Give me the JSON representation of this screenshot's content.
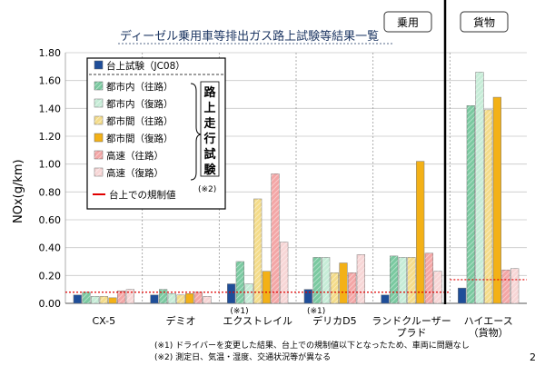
{
  "page_number": "2",
  "chart_data": {
    "type": "bar",
    "title": "ディーゼル乗用車等排出ガス路上試験等結果一覧",
    "ylabel": "NOx(g/km)",
    "ylim": [
      0,
      1.8
    ],
    "yticks": [
      "0.00",
      "0.20",
      "0.40",
      "0.60",
      "0.80",
      "1.00",
      "1.20",
      "1.40",
      "1.60",
      "1.80"
    ],
    "grid": true,
    "legend_position": "top-left",
    "categories": [
      "CX-5",
      "デミオ",
      "エクストレイル",
      "デリカD5",
      "ランドクルーザー\nプラド",
      "ハイエース\n（貨物）"
    ],
    "category_notes": [
      "",
      "",
      "(※1)",
      "(※1)",
      "",
      ""
    ],
    "series": [
      {
        "name": "台上試験（JC08）",
        "color": "#1f4e99",
        "pattern": "solid",
        "values": [
          0.06,
          0.06,
          0.14,
          0.1,
          0.06,
          0.11
        ]
      },
      {
        "name": "都市内（往路）",
        "color": "#7ac9a0",
        "pattern": "hatch",
        "values": [
          0.08,
          0.1,
          0.3,
          0.33,
          0.34,
          1.42
        ]
      },
      {
        "name": "都市内（復路）",
        "color": "#c6ecd7",
        "pattern": "hatch",
        "values": [
          0.05,
          0.07,
          0.14,
          0.33,
          0.33,
          1.66
        ]
      },
      {
        "name": "都市間（往路）",
        "color": "#f4dc8a",
        "pattern": "hatch",
        "values": [
          0.05,
          0.06,
          0.75,
          0.22,
          0.33,
          1.39
        ]
      },
      {
        "name": "都市間（復路）",
        "color": "#f3b117",
        "pattern": "solid",
        "values": [
          0.04,
          0.07,
          0.23,
          0.29,
          1.02,
          1.48
        ]
      },
      {
        "name": "高速（往路）",
        "color": "#f3a6a6",
        "pattern": "hatch",
        "values": [
          0.09,
          0.08,
          0.93,
          0.22,
          0.36,
          0.24
        ]
      },
      {
        "name": "高速（復路）",
        "color": "#f7d6d6",
        "pattern": "hatch",
        "values": [
          0.1,
          0.05,
          0.44,
          0.35,
          0.23,
          0.25
        ]
      }
    ],
    "limit_line": {
      "name": "台上での規制値",
      "color": "#e00000",
      "segments": [
        {
          "from": "CX-5",
          "to": "ランドクルーザー\nプラド",
          "value": 0.08
        },
        {
          "from": "ハイエース\n（貨物）",
          "to": "ハイエース\n（貨物）",
          "value": 0.17
        }
      ]
    },
    "legend_group_label": "路上走行試験",
    "legend_group_note": "(※2)",
    "section_labels": [
      "乗用",
      "貨物"
    ],
    "footnotes": [
      "(※1) ドライバーを変更した結果、台上での規制値以下となったため、車両に問題なし",
      "(※2) 測定日、気温・湿度、交通状況等が異なる"
    ]
  }
}
